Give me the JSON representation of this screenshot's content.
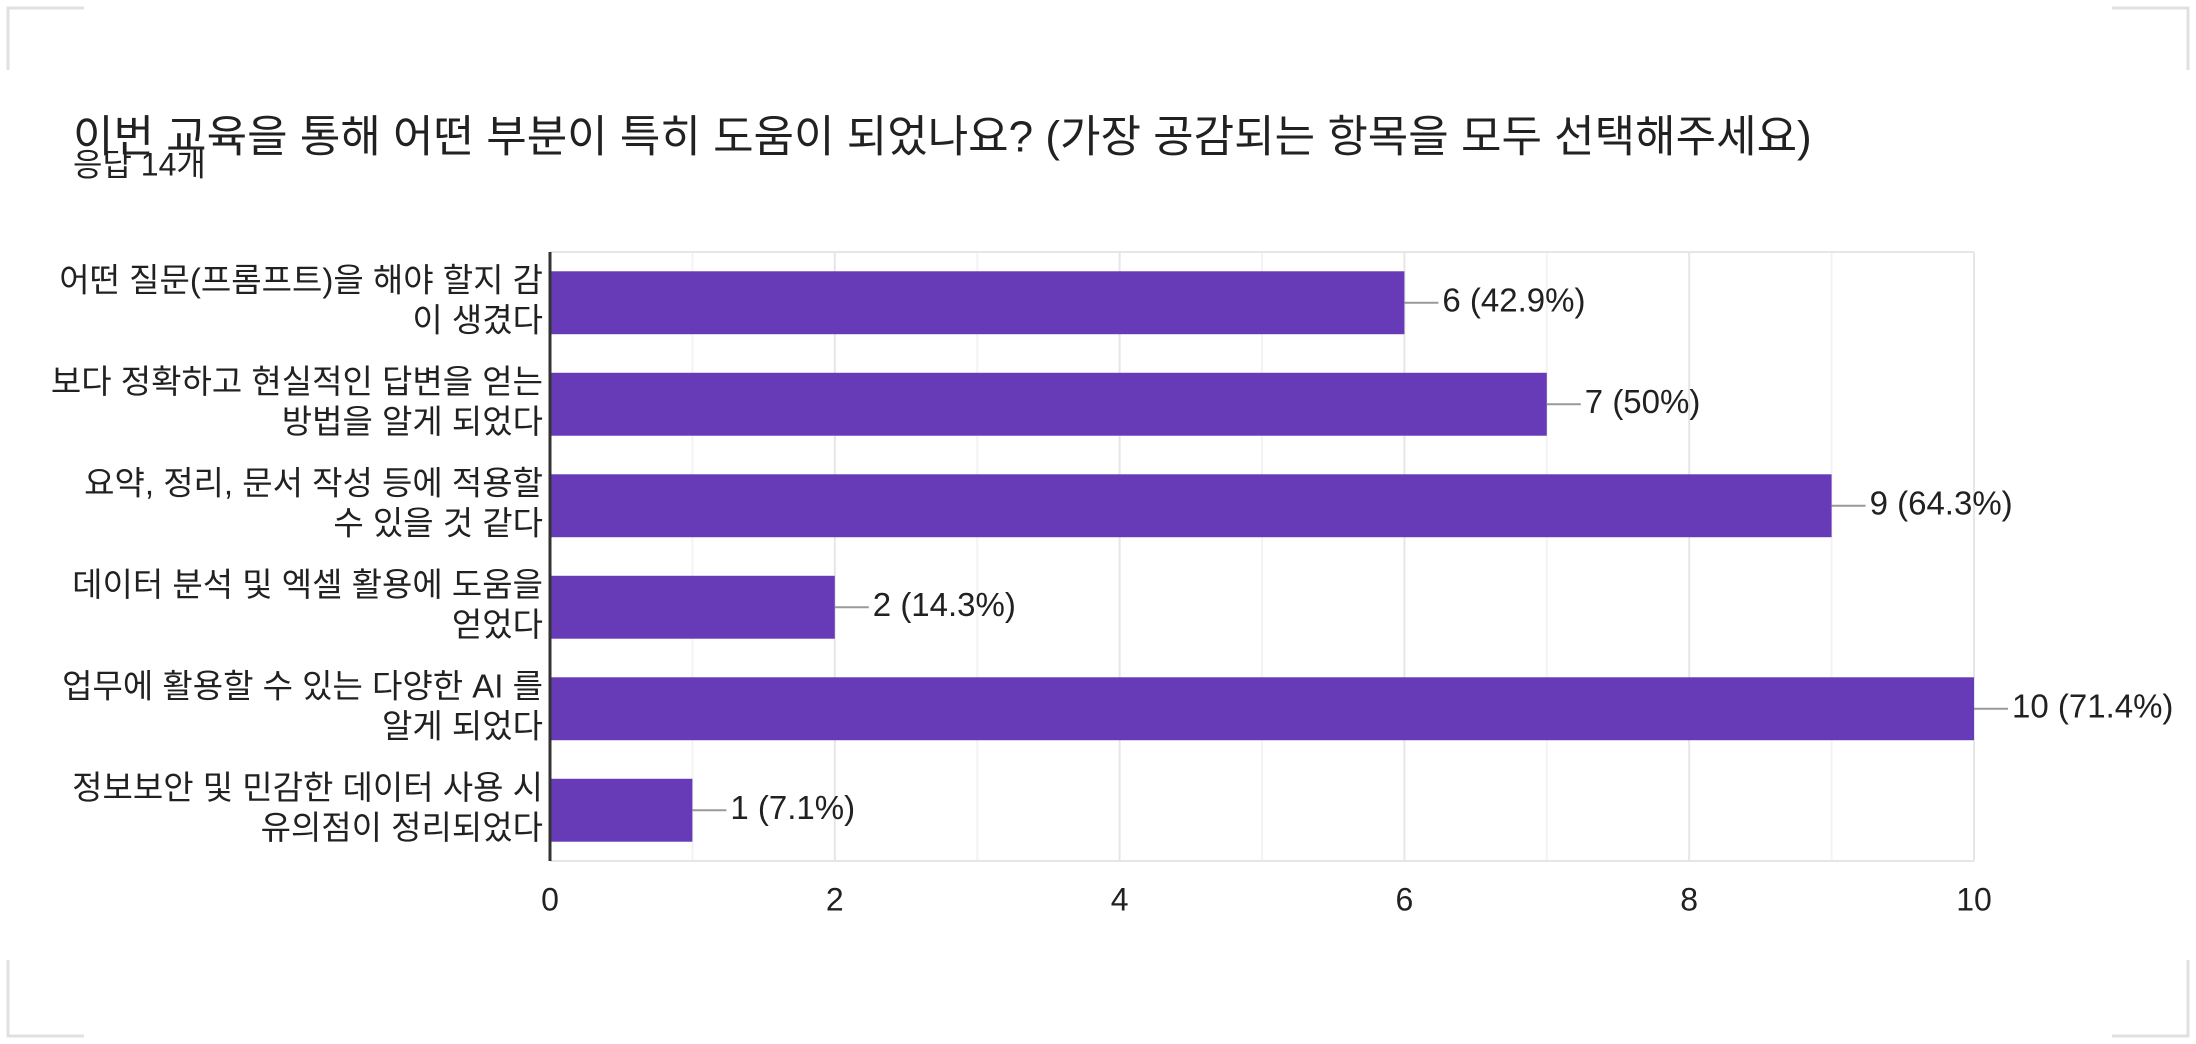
{
  "chart_data": {
    "type": "hbar",
    "title": "이번 교육을 통해 어떤 부분이 특히 도움이 되었나요? (가장 공감되는 항목을 모두 선택해주세요)",
    "subtitle": "응답 14개",
    "categories": [
      [
        "어떤 질문(프롬프트)을 해야 할지 감",
        "이 생겼다"
      ],
      [
        "보다 정확하고 현실적인 답변을 얻는",
        "방법을 알게 되었다"
      ],
      [
        "요약, 정리, 문서 작성 등에 적용할",
        "수 있을 것 같다"
      ],
      [
        "데이터 분석 및 엑셀 활용에 도움을",
        "얻었다"
      ],
      [
        "업무에 활용할 수 있는 다양한 AI 를",
        "알게 되었다"
      ],
      [
        "정보보안 및 민감한 데이터 사용 시",
        "유의점이 정리되었다"
      ]
    ],
    "values": [
      6,
      7,
      9,
      2,
      10,
      1
    ],
    "value_labels": [
      "6 (42.9%)",
      "7 (50%)",
      "9 (64.3%)",
      "2 (14.3%)",
      "10 (71.4%)",
      "1 (7.1%)"
    ],
    "color": "#673ab7",
    "xlim": [
      0,
      10
    ],
    "xticks": [
      0,
      2,
      4,
      6,
      8,
      10
    ],
    "grid": true
  }
}
